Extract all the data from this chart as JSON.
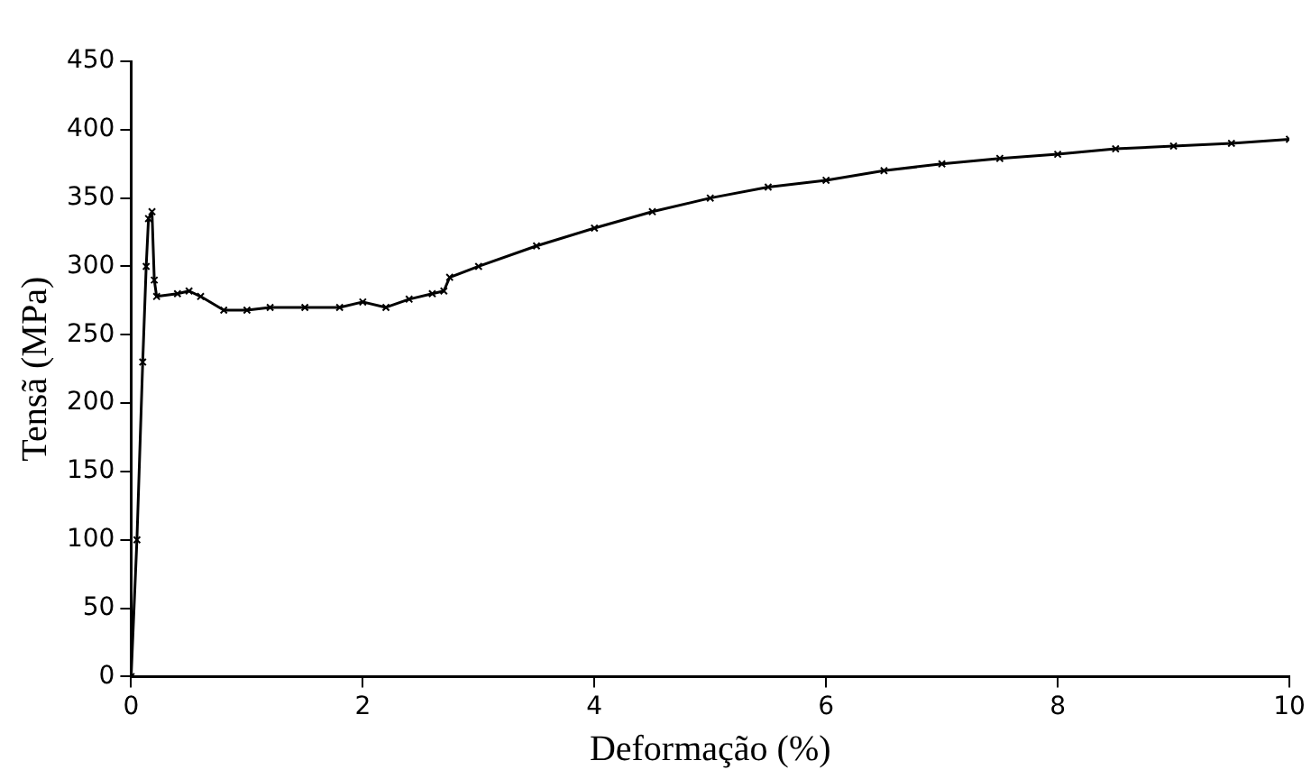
{
  "chart_data": {
    "type": "line",
    "xlabel": "Deformação (%)",
    "ylabel": "Tensã (MPa)",
    "xlim": [
      0,
      10
    ],
    "xticks": [
      0,
      2,
      4,
      6,
      8,
      10
    ],
    "ylim": [
      0,
      450
    ],
    "yticks": [
      0,
      50,
      100,
      150,
      200,
      250,
      300,
      350,
      400,
      450
    ],
    "grid": false,
    "legend": false,
    "marker": "cross",
    "line_style": "solid",
    "series": [
      {
        "color": "#000000",
        "x": [
          0,
          0.05,
          0.1,
          0.13,
          0.15,
          0.18,
          0.2,
          0.22,
          0.4,
          0.5,
          0.6,
          0.8,
          1.0,
          1.2,
          1.5,
          1.8,
          2.0,
          2.2,
          2.4,
          2.6,
          2.7,
          2.75,
          3.0,
          3.5,
          4,
          4.5,
          5,
          5.5,
          6,
          6.5,
          7,
          7.5,
          8,
          8.5,
          9,
          9.5,
          10
        ],
        "values": [
          0,
          100,
          230,
          300,
          335,
          340,
          290,
          278,
          280,
          282,
          278,
          268,
          268,
          270,
          270,
          270,
          274,
          270,
          276,
          280,
          282,
          292,
          300,
          315,
          328,
          340,
          350,
          358,
          363,
          370,
          375,
          379,
          382,
          386,
          388,
          390,
          393
        ]
      }
    ]
  }
}
